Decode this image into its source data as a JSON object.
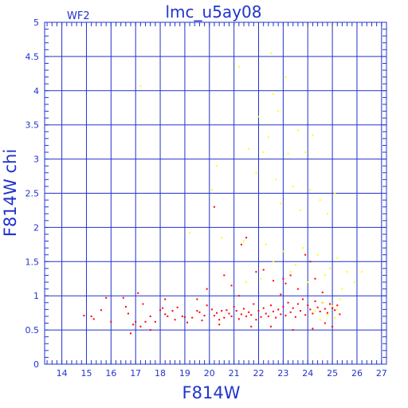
{
  "chart_data": {
    "type": "scatter",
    "title": "lmc_u5ay08",
    "subtitle": "WF2",
    "xlabel": "F814W",
    "ylabel": "F814W  chi",
    "xlim": [
      13.3,
      27.2
    ],
    "ylim": [
      0,
      5
    ],
    "x_ticks": [
      14,
      15,
      16,
      17,
      18,
      19,
      20,
      21,
      22,
      23,
      24,
      25,
      26,
      27
    ],
    "y_ticks": [
      0,
      0.5,
      1,
      1.5,
      2,
      2.5,
      3,
      3.5,
      4,
      4.5,
      5
    ],
    "x_tick_labels": [
      "14",
      "15",
      "16",
      "17",
      "18",
      "19",
      "20",
      "21",
      "22",
      "23",
      "24",
      "25",
      "26",
      "27"
    ],
    "y_tick_labels": [
      "0",
      "0.5",
      "1",
      "1.5",
      "2",
      "2.5",
      "3",
      "3.5",
      "4",
      "4.5",
      "5"
    ],
    "grid": true,
    "series": [
      {
        "color": "#ff0000",
        "points": [
          [
            14.9,
            0.71
          ],
          [
            15.2,
            0.7
          ],
          [
            15.3,
            0.66
          ],
          [
            15.6,
            0.79
          ],
          [
            15.8,
            0.97
          ],
          [
            16.0,
            0.62
          ],
          [
            16.5,
            0.97
          ],
          [
            16.6,
            0.84
          ],
          [
            16.7,
            0.74
          ],
          [
            16.9,
            0.58
          ],
          [
            17.0,
            0.62
          ],
          [
            17.1,
            1.04
          ],
          [
            17.2,
            0.55
          ],
          [
            17.3,
            0.88
          ],
          [
            17.4,
            0.62
          ],
          [
            17.6,
            0.7
          ],
          [
            17.8,
            0.62
          ],
          [
            18.0,
            0.79
          ],
          [
            18.1,
            0.82
          ],
          [
            18.2,
            0.73
          ],
          [
            18.3,
            0.7
          ],
          [
            18.5,
            0.78
          ],
          [
            18.6,
            0.65
          ],
          [
            18.7,
            0.83
          ],
          [
            18.9,
            0.7
          ],
          [
            19.0,
            0.69
          ],
          [
            19.1,
            0.61
          ],
          [
            19.3,
            0.68
          ],
          [
            19.5,
            0.78
          ],
          [
            19.6,
            0.76
          ],
          [
            19.7,
            0.64
          ],
          [
            19.8,
            0.71
          ],
          [
            19.9,
            0.86
          ],
          [
            20.1,
            0.8
          ],
          [
            20.2,
            0.71
          ],
          [
            20.3,
            0.75
          ],
          [
            20.4,
            0.65
          ],
          [
            20.5,
            0.78
          ],
          [
            20.6,
            0.68
          ],
          [
            20.7,
            0.79
          ],
          [
            20.8,
            0.74
          ],
          [
            20.9,
            0.7
          ],
          [
            21.0,
            0.84
          ],
          [
            21.1,
            0.78
          ],
          [
            21.2,
            0.66
          ],
          [
            21.3,
            0.73
          ],
          [
            21.4,
            0.81
          ],
          [
            21.5,
            0.7
          ],
          [
            21.6,
            0.76
          ],
          [
            21.7,
            0.72
          ],
          [
            21.8,
            0.88
          ],
          [
            21.9,
            0.65
          ],
          [
            22.0,
            0.78
          ],
          [
            22.1,
            0.69
          ],
          [
            22.2,
            0.82
          ],
          [
            22.3,
            0.74
          ],
          [
            22.4,
            0.7
          ],
          [
            22.5,
            0.86
          ],
          [
            22.6,
            0.77
          ],
          [
            22.7,
            0.68
          ],
          [
            22.8,
            0.8
          ],
          [
            22.9,
            0.73
          ],
          [
            23.0,
            0.84
          ],
          [
            23.1,
            0.71
          ],
          [
            23.2,
            0.9
          ],
          [
            23.3,
            0.76
          ],
          [
            23.4,
            0.82
          ],
          [
            23.5,
            0.69
          ],
          [
            23.6,
            0.88
          ],
          [
            23.7,
            0.78
          ],
          [
            23.8,
            0.95
          ],
          [
            23.9,
            0.72
          ],
          [
            24.0,
            0.86
          ],
          [
            24.1,
            0.8
          ],
          [
            24.2,
            0.74
          ],
          [
            24.3,
            0.92
          ],
          [
            24.4,
            0.83
          ],
          [
            24.5,
            0.77
          ],
          [
            24.6,
            0.9
          ],
          [
            24.7,
            0.81
          ],
          [
            24.8,
            0.75
          ],
          [
            24.9,
            0.88
          ],
          [
            25.0,
            0.82
          ],
          [
            25.1,
            0.79
          ],
          [
            25.2,
            0.86
          ],
          [
            25.3,
            0.73
          ],
          [
            20.2,
            2.3
          ],
          [
            20.6,
            1.3
          ],
          [
            21.3,
            1.75
          ],
          [
            21.5,
            1.85
          ],
          [
            21.9,
            1.35
          ],
          [
            22.2,
            1.38
          ],
          [
            22.6,
            1.22
          ],
          [
            22.9,
            1.02
          ],
          [
            23.1,
            1.18
          ],
          [
            23.3,
            1.3
          ],
          [
            23.6,
            1.1
          ],
          [
            23.9,
            1.6
          ],
          [
            24.1,
            1.5
          ],
          [
            24.3,
            1.25
          ],
          [
            24.6,
            1.05
          ],
          [
            23.0,
            1.25
          ],
          [
            21.2,
            1.0
          ],
          [
            20.9,
            1.15
          ],
          [
            19.9,
            1.1
          ],
          [
            19.5,
            0.95
          ],
          [
            18.2,
            0.95
          ],
          [
            17.6,
            0.5
          ],
          [
            16.8,
            0.45
          ],
          [
            22.5,
            0.55
          ],
          [
            23.4,
            0.5
          ],
          [
            24.2,
            0.52
          ],
          [
            21.7,
            0.55
          ],
          [
            20.4,
            0.58
          ],
          [
            25.0,
            0.55
          ],
          [
            24.7,
            0.6
          ]
        ]
      },
      {
        "color": "#ffff00",
        "points": [
          [
            17.2,
            4.07
          ],
          [
            21.2,
            4.35
          ],
          [
            22.5,
            4.55
          ],
          [
            22.6,
            3.95
          ],
          [
            23.1,
            4.2
          ],
          [
            22.8,
            3.7
          ],
          [
            22.0,
            3.62
          ],
          [
            22.4,
            3.32
          ],
          [
            22.2,
            3.1
          ],
          [
            23.6,
            3.42
          ],
          [
            21.6,
            3.15
          ],
          [
            23.2,
            3.08
          ],
          [
            24.2,
            3.35
          ],
          [
            23.9,
            3.1
          ],
          [
            20.3,
            2.9
          ],
          [
            21.9,
            2.8
          ],
          [
            22.7,
            2.7
          ],
          [
            23.4,
            2.6
          ],
          [
            24.1,
            2.55
          ],
          [
            24.5,
            2.4
          ],
          [
            25.1,
            2.5
          ],
          [
            20.1,
            2.55
          ],
          [
            22.9,
            2.35
          ],
          [
            23.7,
            2.25
          ],
          [
            24.8,
            2.2
          ],
          [
            19.2,
            1.92
          ],
          [
            20.5,
            1.85
          ],
          [
            21.4,
            1.8
          ],
          [
            22.3,
            1.75
          ],
          [
            23.0,
            1.65
          ],
          [
            23.8,
            1.7
          ],
          [
            24.4,
            1.6
          ],
          [
            25.2,
            1.55
          ],
          [
            22.6,
            1.5
          ],
          [
            23.5,
            1.45
          ],
          [
            24.9,
            1.4
          ],
          [
            25.6,
            1.35
          ],
          [
            26.2,
            1.35
          ],
          [
            25.9,
            1.2
          ],
          [
            25.4,
            1.1
          ],
          [
            24.7,
            1.3
          ],
          [
            24.0,
            1.2
          ],
          [
            23.3,
            1.35
          ],
          [
            22.1,
            1.25
          ],
          [
            21.5,
            1.2
          ],
          [
            25.3,
            0.95
          ],
          [
            25.0,
            0.85
          ],
          [
            24.6,
            0.9
          ],
          [
            24.3,
            0.78
          ],
          [
            24.8,
            0.72
          ],
          [
            25.1,
            0.68
          ],
          [
            24.5,
            0.65
          ],
          [
            25.2,
            0.8
          ]
        ]
      }
    ]
  }
}
